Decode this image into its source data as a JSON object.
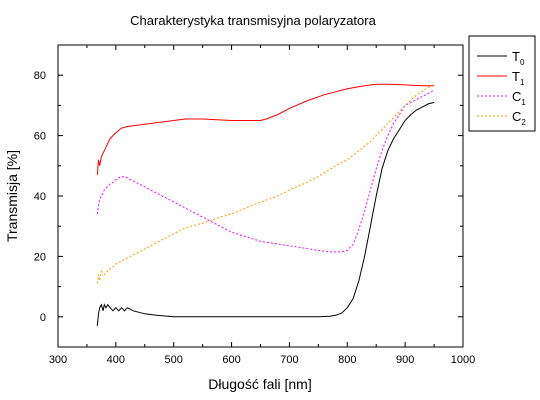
{
  "chart_data": {
    "type": "line",
    "title": "Charakterystyka transmisyjna polaryzatora",
    "xlabel": "Długość fali [nm]",
    "ylabel": "Transmisja [%]",
    "xlim": [
      300,
      1000
    ],
    "ylim": [
      -10,
      90
    ],
    "x_ticks": [
      300,
      400,
      500,
      600,
      700,
      800,
      900,
      1000
    ],
    "y_ticks": [
      0,
      20,
      40,
      60,
      80
    ],
    "grid": false,
    "legend_position": "right",
    "series": [
      {
        "name": "T0",
        "label_main": "T",
        "label_sub": "0",
        "color": "#000000",
        "dash": "solid",
        "x": [
          368,
          370,
          372,
          375,
          378,
          380,
          383,
          386,
          390,
          395,
          400,
          405,
          410,
          415,
          420,
          430,
          440,
          450,
          470,
          500,
          550,
          600,
          650,
          700,
          750,
          770,
          780,
          790,
          800,
          810,
          820,
          830,
          840,
          850,
          860,
          870,
          880,
          890,
          900,
          910,
          920,
          930,
          940,
          950
        ],
        "y": [
          -3,
          1,
          3,
          4,
          2,
          4,
          3,
          4,
          3,
          2,
          3,
          2,
          3,
          2,
          3,
          2,
          1.5,
          1,
          0.5,
          0,
          0,
          0,
          0,
          0,
          0,
          0.2,
          0.5,
          1.2,
          3,
          6,
          12,
          20,
          30,
          40,
          49,
          55,
          59,
          62,
          65,
          67,
          68.5,
          69.5,
          70.5,
          71
        ]
      },
      {
        "name": "T1",
        "label_main": "T",
        "label_sub": "1",
        "color": "#ff0000",
        "dash": "solid",
        "x": [
          368,
          370,
          372,
          375,
          380,
          385,
          390,
          395,
          400,
          410,
          420,
          440,
          460,
          480,
          500,
          520,
          550,
          600,
          630,
          650,
          660,
          680,
          700,
          730,
          760,
          800,
          830,
          850,
          870,
          900,
          930,
          950
        ],
        "y": [
          47,
          52,
          50,
          53,
          55,
          57,
          59,
          60,
          61,
          62.5,
          63,
          63.5,
          64,
          64.5,
          65,
          65.5,
          65.5,
          65,
          65,
          65,
          65.5,
          67,
          69,
          71.5,
          73.5,
          75.5,
          76.5,
          77,
          77,
          76.8,
          76.5,
          76.5
        ]
      },
      {
        "name": "C1",
        "label_main": "C",
        "label_sub": "1",
        "color": "#ff00ff",
        "dash": "2,2",
        "x": [
          368,
          370,
          372,
          375,
          380,
          385,
          390,
          395,
          400,
          405,
          410,
          420,
          430,
          450,
          480,
          500,
          550,
          600,
          650,
          700,
          750,
          770,
          790,
          800,
          810,
          820,
          830,
          840,
          850,
          860,
          870,
          880,
          890,
          900,
          910,
          920,
          930,
          940,
          950
        ],
        "y": [
          34,
          37,
          39,
          40,
          42,
          43,
          44,
          44.5,
          45.5,
          46,
          46.5,
          46,
          45,
          43,
          40,
          38,
          33,
          28,
          25,
          23.5,
          22,
          21.5,
          21.5,
          22,
          24,
          29,
          35,
          42,
          49,
          55,
          60,
          64,
          67,
          70,
          71,
          72,
          73,
          74,
          75
        ]
      },
      {
        "name": "C2",
        "label_main": "C",
        "label_sub": "2",
        "color": "#ff9900",
        "dash": "2,2",
        "x": [
          368,
          370,
          372,
          375,
          380,
          385,
          390,
          395,
          400,
          410,
          420,
          440,
          460,
          480,
          500,
          520,
          550,
          580,
          600,
          630,
          650,
          680,
          700,
          730,
          750,
          780,
          800,
          820,
          840,
          860,
          880,
          900,
          920,
          940,
          950
        ],
        "y": [
          11,
          14,
          12,
          15,
          14,
          15,
          16,
          16.5,
          17.5,
          18.5,
          19.5,
          21.5,
          23.5,
          25.5,
          27.5,
          29.5,
          31,
          33,
          34,
          36.5,
          38,
          40,
          42,
          44.5,
          46.5,
          50,
          52,
          55,
          58,
          62,
          66,
          70,
          73.5,
          76,
          77
        ]
      }
    ]
  }
}
